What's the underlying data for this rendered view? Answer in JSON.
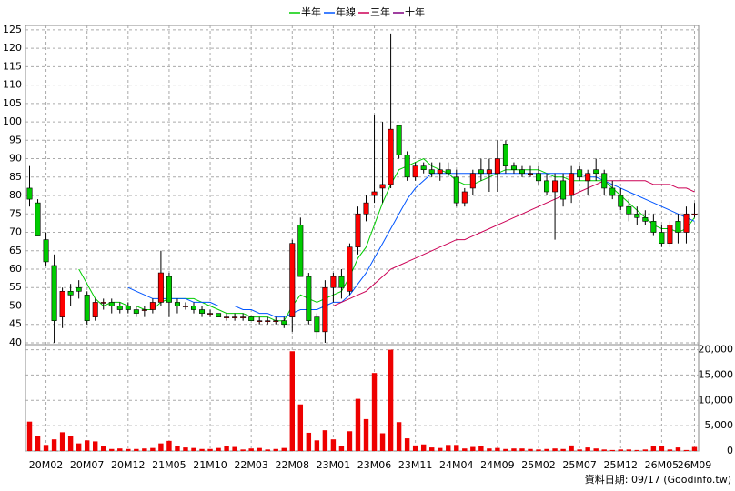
{
  "chart_data": {
    "type": "candlestick",
    "legend": "top",
    "grid": true,
    "footer": "資料日期: 09/17  (Goodinfo.tw)",
    "up_color": "#ff0000",
    "down_color": "#00cc00",
    "categories": [
      null,
      null,
      "20M02",
      null,
      null,
      null,
      null,
      "20M07",
      null,
      null,
      null,
      null,
      "20M12",
      null,
      null,
      null,
      null,
      "21M05",
      null,
      null,
      null,
      null,
      "21M10",
      null,
      null,
      null,
      null,
      "22M03",
      null,
      null,
      null,
      null,
      "22M08",
      null,
      null,
      null,
      null,
      "23M01",
      null,
      null,
      null,
      null,
      "23M06",
      null,
      null,
      null,
      null,
      "23M11",
      null,
      null,
      null,
      null,
      "24M04",
      null,
      null,
      null,
      null,
      "24M09",
      null,
      null,
      null,
      null,
      "25M02",
      null,
      null,
      null,
      null,
      "25M07",
      null,
      null,
      null,
      null,
      "25M12",
      null,
      null,
      null,
      null,
      "26M05",
      null,
      null,
      null,
      "26M09"
    ],
    "open": [
      82,
      78,
      68,
      61,
      47,
      54,
      55,
      53,
      47,
      51,
      51,
      50,
      50,
      49,
      49,
      49,
      51,
      58,
      51,
      50,
      50,
      49,
      48,
      48,
      47,
      47,
      47,
      47,
      46,
      46,
      46,
      46,
      47,
      72,
      58,
      47,
      43,
      55,
      58,
      54,
      66,
      75,
      80,
      82,
      83,
      99,
      91,
      85,
      88,
      87,
      86,
      87,
      85,
      78,
      82,
      87,
      86,
      86,
      94,
      88,
      87,
      86,
      86,
      84,
      81,
      84,
      80,
      87,
      84,
      87,
      86,
      82,
      80,
      77,
      75,
      74,
      73,
      70,
      67,
      73,
      70,
      75
    ],
    "high": [
      88,
      79,
      70,
      64,
      55,
      56,
      57,
      54,
      52,
      52,
      52,
      51,
      51,
      50,
      50,
      52,
      65,
      59,
      52,
      51,
      51,
      50,
      49,
      48,
      48,
      48,
      48,
      47,
      47,
      47,
      47,
      47,
      68,
      74,
      59,
      48,
      57,
      59,
      60,
      67,
      77,
      80,
      102,
      100,
      124,
      99,
      92,
      89,
      89,
      89,
      89,
      89,
      87,
      82,
      87,
      90,
      90,
      95,
      95,
      89,
      88,
      88,
      88,
      86,
      86,
      86,
      88,
      88,
      87,
      90,
      87,
      84,
      82,
      79,
      77,
      76,
      75,
      72,
      73,
      75,
      77,
      78
    ],
    "low": [
      77,
      69,
      61,
      40,
      44,
      50,
      52,
      45,
      46,
      49,
      48,
      48,
      48,
      47,
      47,
      48,
      50,
      47,
      48,
      49,
      48,
      47,
      47,
      47,
      46,
      46,
      46,
      46,
      45,
      45,
      45,
      44,
      43,
      58,
      45,
      41,
      40,
      51,
      52,
      53,
      64,
      73,
      78,
      78,
      82,
      90,
      84,
      84,
      86,
      85,
      84,
      85,
      77,
      77,
      80,
      84,
      81,
      81,
      86,
      86,
      85,
      85,
      83,
      80,
      68,
      77,
      78,
      84,
      80,
      84,
      80,
      79,
      76,
      73,
      72,
      72,
      69,
      66,
      66,
      67,
      67,
      74
    ],
    "close": [
      79,
      69,
      62,
      46,
      54,
      53,
      54,
      46,
      51,
      51,
      50,
      49,
      49,
      48,
      49,
      51,
      59,
      51,
      50,
      50,
      49,
      48,
      48,
      47,
      47,
      47,
      47,
      46,
      46,
      46,
      46,
      45,
      67,
      58,
      46,
      43,
      55,
      58,
      55,
      66,
      75,
      78,
      81,
      83,
      98,
      91,
      85,
      88,
      87,
      86,
      87,
      86,
      78,
      81,
      86,
      86,
      87,
      90,
      88,
      87,
      86,
      86,
      84,
      81,
      84,
      79,
      86,
      85,
      86,
      86,
      82,
      80,
      77,
      75,
      74,
      73,
      70,
      67,
      72,
      70,
      75,
      75
    ],
    "ylim": [
      39.5,
      126.2
    ],
    "yticks": [
      40,
      45,
      50,
      55,
      60,
      65,
      70,
      75,
      80,
      85,
      90,
      95,
      100,
      105,
      110,
      115,
      120,
      125
    ],
    "series": [
      {
        "name": "半年",
        "color": "#00cc00",
        "values": [
          null,
          null,
          null,
          null,
          null,
          null,
          60,
          56,
          52,
          50,
          51,
          51,
          50,
          50,
          49,
          49,
          51,
          52,
          52,
          52,
          52,
          51,
          50,
          49,
          48,
          48,
          48,
          47,
          47,
          47,
          46,
          46,
          50,
          53,
          52,
          51,
          52,
          53,
          54,
          58,
          63,
          66,
          72,
          78,
          83,
          87,
          88,
          89,
          90,
          88,
          87,
          86,
          84,
          83,
          83,
          84,
          85,
          86,
          87,
          87,
          87,
          87,
          87,
          86,
          85,
          85,
          84,
          84,
          84,
          84,
          84,
          82,
          80,
          78,
          76,
          74,
          72,
          71,
          71,
          70,
          71,
          74
        ]
      },
      {
        "name": "年線",
        "color": "#0055ff",
        "values": [
          null,
          null,
          null,
          null,
          null,
          null,
          null,
          null,
          null,
          null,
          null,
          null,
          55,
          54,
          53,
          52,
          52,
          52,
          52,
          52,
          51,
          51,
          51,
          50,
          50,
          50,
          49,
          49,
          48,
          48,
          47,
          47,
          48,
          49,
          49,
          49,
          50,
          51,
          51,
          53,
          56,
          59,
          63,
          67,
          71,
          75,
          79,
          82,
          84,
          86,
          86,
          86,
          86,
          86,
          86,
          86,
          86,
          86,
          86,
          86,
          86,
          86,
          86,
          86,
          86,
          86,
          86,
          86,
          85,
          85,
          84,
          83,
          82,
          81,
          80,
          79,
          78,
          77,
          76,
          75,
          74,
          73
        ]
      },
      {
        "name": "三年",
        "color": "#cc0055",
        "values": [
          null,
          null,
          null,
          null,
          null,
          null,
          null,
          null,
          null,
          null,
          null,
          null,
          null,
          null,
          null,
          null,
          null,
          null,
          null,
          null,
          null,
          null,
          null,
          null,
          null,
          null,
          null,
          null,
          null,
          null,
          null,
          null,
          null,
          null,
          null,
          null,
          50,
          50,
          51,
          52,
          53,
          54,
          56,
          58,
          60,
          61,
          62,
          63,
          64,
          65,
          66,
          67,
          68,
          68,
          69,
          70,
          71,
          72,
          73,
          74,
          75,
          76,
          77,
          78,
          79,
          80,
          80,
          81,
          82,
          83,
          84,
          84,
          84,
          84,
          84,
          84,
          83,
          83,
          83,
          82,
          82,
          81
        ]
      },
      {
        "name": "十年",
        "color": "#800080",
        "values": [
          null,
          null,
          null,
          null,
          null,
          null,
          null,
          null,
          null,
          null,
          null,
          null,
          null,
          null,
          null,
          null,
          null,
          null,
          null,
          null,
          null,
          null,
          null,
          null,
          null,
          null,
          null,
          null,
          null,
          null,
          null,
          null,
          null,
          null,
          null,
          null,
          null,
          null,
          null,
          null,
          null,
          null,
          null,
          null,
          null,
          null,
          null,
          null,
          null,
          null,
          null,
          null,
          null,
          null,
          null,
          null,
          null,
          null,
          null,
          null,
          null,
          null,
          null,
          null,
          null,
          null,
          null,
          null,
          null,
          null,
          null,
          null,
          null,
          null,
          null,
          null,
          null,
          null,
          null,
          null,
          null,
          null
        ]
      }
    ],
    "volume": {
      "color": "#ee0000",
      "ylim": [
        0,
        21000
      ],
      "yticks": [
        0,
        {
          "value": 5000,
          "label": "5,000"
        },
        {
          "value": 10000,
          "label": "10,000"
        },
        {
          "value": 15000,
          "label": "15,000"
        },
        {
          "value": 20000,
          "label": "20,000"
        }
      ],
      "values": [
        5800,
        3000,
        1200,
        2300,
        3700,
        3000,
        1500,
        2100,
        1900,
        900,
        400,
        500,
        400,
        400,
        500,
        600,
        1500,
        2000,
        900,
        700,
        600,
        400,
        400,
        600,
        1000,
        800,
        300,
        500,
        600,
        300,
        400,
        600,
        19700,
        9200,
        3600,
        2100,
        4100,
        2300,
        900,
        3900,
        10300,
        6300,
        15400,
        3500,
        20000,
        5700,
        2500,
        1100,
        1300,
        700,
        600,
        1200,
        1200,
        500,
        800,
        1000,
        500,
        600,
        400,
        500,
        500,
        400,
        300,
        400,
        500,
        400,
        1100,
        300,
        700,
        500,
        300,
        200,
        300,
        300,
        200,
        300,
        1000,
        900,
        300,
        700,
        200,
        800
      ]
    }
  }
}
